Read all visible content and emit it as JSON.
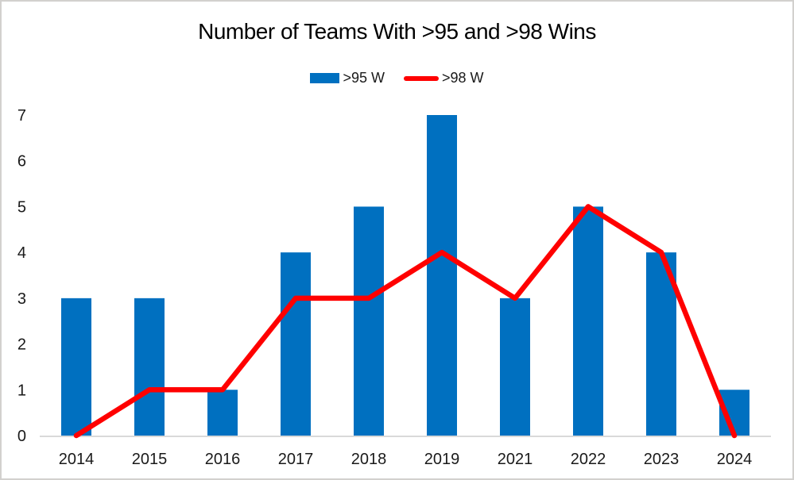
{
  "chart_data": {
    "type": "bar",
    "title": "Number of Teams With >95 and >98 Wins",
    "categories": [
      "2014",
      "2015",
      "2016",
      "2017",
      "2018",
      "2019",
      "2021",
      "2022",
      "2023",
      "2024"
    ],
    "series": [
      {
        "name": ">95 W",
        "type": "bar",
        "color": "#0070C0",
        "values": [
          3,
          3,
          1,
          4,
          5,
          7,
          3,
          5,
          4,
          1
        ]
      },
      {
        "name": ">98 W",
        "type": "line",
        "color": "#FF0000",
        "values": [
          0,
          1,
          1,
          3,
          3,
          4,
          3,
          5,
          4,
          0
        ]
      }
    ],
    "xlabel": "",
    "ylabel": "",
    "ylim": [
      0,
      7
    ],
    "yticks": [
      0,
      1,
      2,
      3,
      4,
      5,
      6,
      7
    ],
    "grid": false,
    "legend_position": "top-center",
    "axis_color": "#D9D9D9",
    "text_color": "#1A1A1A"
  }
}
